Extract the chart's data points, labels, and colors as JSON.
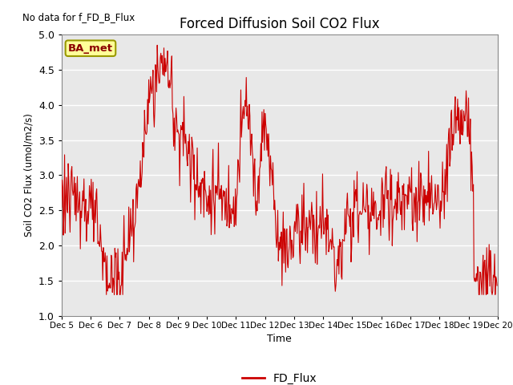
{
  "title": "Forced Diffusion Soil CO2 Flux",
  "xlabel": "Time",
  "ylabel_raw": "Soil CO2 Flux (umol/m2/s)",
  "no_data_text": "No data for f_FD_B_Flux",
  "legend_label": "FD_Flux",
  "box_label": "BA_met",
  "ylim": [
    1.0,
    5.0
  ],
  "line_color": "#cc0000",
  "legend_line_color": "#cc0000",
  "bg_color": "#e8e8e8",
  "box_facecolor": "#ffff99",
  "box_edgecolor": "#999900",
  "yticks": [
    1.0,
    1.5,
    2.0,
    2.5,
    3.0,
    3.5,
    4.0,
    4.5,
    5.0
  ]
}
